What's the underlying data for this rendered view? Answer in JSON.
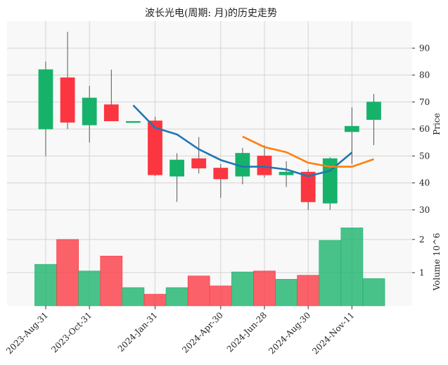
{
  "chart_data": {
    "type": "candlestick",
    "title": "波长光电(周期: 月)的历史走势",
    "ylabel_price": "Price",
    "ylabel_volume": "Volume",
    "volume_multiplier_label": "10^6",
    "ylim_price": [
      25,
      100
    ],
    "ylim_volume": [
      0,
      2.4
    ],
    "price_ticks": [
      30,
      40,
      50,
      60,
      70,
      80,
      90
    ],
    "volume_ticks": [
      1,
      2
    ],
    "x_tick_labels": [
      {
        "index": 0,
        "label": "2023-Aug-31"
      },
      {
        "index": 2,
        "label": "2023-Oct-31"
      },
      {
        "index": 5,
        "label": "2024-Jan-31"
      },
      {
        "index": 8,
        "label": "2024-Apr-30"
      },
      {
        "index": 10,
        "label": "2024-Jun-28"
      },
      {
        "index": 12,
        "label": "2024-Aug-30"
      },
      {
        "index": 14,
        "label": "2024-Nov-11"
      }
    ],
    "candles": [
      {
        "o": 60,
        "h": 85,
        "l": 50,
        "c": 82,
        "v": 1.25
      },
      {
        "o": 79,
        "h": 96,
        "l": 60,
        "c": 62.5,
        "v": 2.0
      },
      {
        "o": 61.5,
        "h": 76,
        "l": 55,
        "c": 71.5,
        "v": 1.05
      },
      {
        "o": 69,
        "h": 82,
        "l": 63,
        "c": 63,
        "v": 1.5
      },
      {
        "o": 62.5,
        "h": 62.9,
        "l": 62.5,
        "c": 62.8,
        "v": 0.55
      },
      {
        "o": 63,
        "h": 64.5,
        "l": 42.5,
        "c": 43,
        "v": 0.35
      },
      {
        "o": 42.5,
        "h": 51,
        "l": 33,
        "c": 48.5,
        "v": 0.55
      },
      {
        "o": 49,
        "h": 57,
        "l": 43.5,
        "c": 45.5,
        "v": 0.9
      },
      {
        "o": 45.5,
        "h": 47,
        "l": 34.5,
        "c": 41.5,
        "v": 0.6
      },
      {
        "o": 42.5,
        "h": 53,
        "l": 39.5,
        "c": 51,
        "v": 1.02
      },
      {
        "o": 50,
        "h": 54,
        "l": 42,
        "c": 43,
        "v": 1.05
      },
      {
        "o": 43,
        "h": 48,
        "l": 38.5,
        "c": 44,
        "v": 0.8
      },
      {
        "o": 44,
        "h": 45,
        "l": 30,
        "c": 33,
        "v": 0.92
      },
      {
        "o": 32.5,
        "h": 49.5,
        "l": 30,
        "c": 49,
        "v": 1.97
      },
      {
        "o": 59,
        "h": 68,
        "l": 47,
        "c": 61,
        "v": 2.35
      },
      {
        "o": 63.5,
        "h": 73,
        "l": 54,
        "c": 70,
        "v": 0.82
      }
    ],
    "ma_series": [
      {
        "color": "#1f77b4",
        "start_index": 4,
        "values": [
          68.8,
          60.5,
          58.0,
          52.5,
          48.5,
          46.0,
          46.0,
          45.0,
          42.5,
          44.5,
          51.3
        ]
      },
      {
        "color": "#ff7f0e",
        "start_index": 9,
        "values": [
          57.2,
          53.3,
          51.4,
          47.5,
          46.0,
          46.0,
          48.8
        ]
      }
    ],
    "up_color": "#17b26a",
    "down_color": "#fb3640",
    "grid": true
  }
}
